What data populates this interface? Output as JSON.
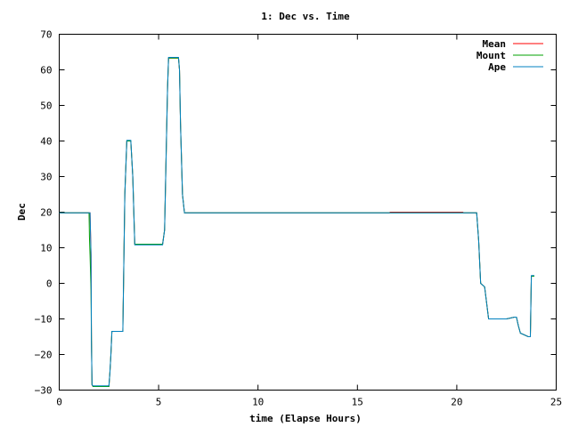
{
  "chart_data": {
    "type": "line",
    "title": "1: Dec vs. Time",
    "xlabel": "time (Elapse Hours)",
    "ylabel": "Dec",
    "xlim": [
      0,
      25
    ],
    "ylim": [
      -30,
      70
    ],
    "xticks": [
      0,
      5,
      10,
      15,
      20,
      25
    ],
    "yticks": [
      -30,
      -20,
      -10,
      0,
      10,
      20,
      30,
      40,
      50,
      60,
      70
    ],
    "grid": false,
    "legend_position": "top-right",
    "series": [
      {
        "name": "Mean",
        "color": "#ff0000",
        "x": [
          0,
          1.55,
          1.6,
          1.62,
          1.65,
          1.7,
          2.5,
          2.55,
          2.6,
          2.65,
          3.2,
          3.3,
          3.4,
          3.5,
          3.6,
          3.7,
          3.8,
          5.2,
          5.3,
          5.4,
          5.45,
          5.5,
          6.0,
          6.05,
          6.1,
          6.2,
          6.3,
          16.6,
          16.65,
          20.3,
          20.35,
          21.0,
          21.1,
          21.2,
          21.4,
          21.6,
          22.5,
          22.9,
          23.0,
          23.1,
          23.2,
          23.6,
          23.7,
          23.75,
          23.9
        ],
        "y": [
          19.8,
          19.8,
          8,
          -16,
          -28.5,
          -29,
          -29,
          -25,
          -20,
          -13.5,
          -13.5,
          25,
          40,
          40,
          40,
          30,
          11,
          11,
          15,
          42,
          55,
          63.3,
          63.3,
          60,
          45,
          25,
          19.8,
          19.8,
          20,
          20,
          19.8,
          19.8,
          12,
          0,
          -1,
          -10,
          -10,
          -9.5,
          -9.5,
          -12,
          -14,
          -15,
          -15,
          2,
          2
        ]
      },
      {
        "name": "Mount",
        "color": "#00a000",
        "x": [
          0,
          1.5,
          1.52,
          1.55,
          1.6,
          1.62,
          1.65,
          1.7,
          2.5,
          2.55,
          2.6,
          2.65,
          3.2,
          3.3,
          3.4,
          3.5,
          3.6,
          3.7,
          3.8,
          5.2,
          5.3,
          5.4,
          5.45,
          5.5,
          6.0,
          6.05,
          6.1,
          6.2,
          6.3,
          21.0,
          21.1,
          21.2,
          21.4,
          21.6,
          22.5,
          22.9,
          23.0,
          23.1,
          23.2,
          23.6,
          23.7,
          23.75,
          23.9
        ],
        "y": [
          19.8,
          19.8,
          13,
          8,
          -2,
          -16,
          -28.5,
          -29,
          -29,
          -25,
          -20,
          -13.5,
          -13.5,
          25,
          40,
          40,
          40,
          30,
          11,
          11,
          15,
          42,
          55,
          63.3,
          63.3,
          60,
          45,
          25,
          19.8,
          19.8,
          12,
          0,
          -1,
          -10,
          -10,
          -9.5,
          -9.5,
          -12,
          -14,
          -15,
          -15,
          2,
          2
        ]
      },
      {
        "name": "Ape",
        "color": "#0080c0",
        "x": [
          0,
          1.55,
          1.6,
          1.62,
          1.65,
          1.7,
          2.5,
          2.55,
          2.6,
          2.65,
          3.2,
          3.3,
          3.4,
          3.5,
          3.6,
          3.7,
          3.8,
          5.2,
          5.3,
          5.4,
          5.45,
          5.5,
          6.0,
          6.05,
          6.1,
          6.2,
          6.3,
          21.0,
          21.1,
          21.2,
          21.4,
          21.6,
          22.5,
          22.9,
          23.0,
          23.1,
          23.2,
          23.6,
          23.7,
          23.75,
          23.9
        ],
        "y": [
          19.8,
          19.8,
          8,
          -16,
          -28.5,
          -28.8,
          -28.8,
          -25,
          -20,
          -13.5,
          -13.5,
          25,
          40.2,
          40.2,
          40.2,
          30,
          10.8,
          10.8,
          15,
          42,
          55,
          63.5,
          63.5,
          60,
          45,
          25,
          19.8,
          19.8,
          12,
          0,
          -1,
          -10,
          -10,
          -9.5,
          -9.5,
          -12,
          -14,
          -15,
          -15,
          2.2,
          2.2
        ]
      }
    ]
  }
}
